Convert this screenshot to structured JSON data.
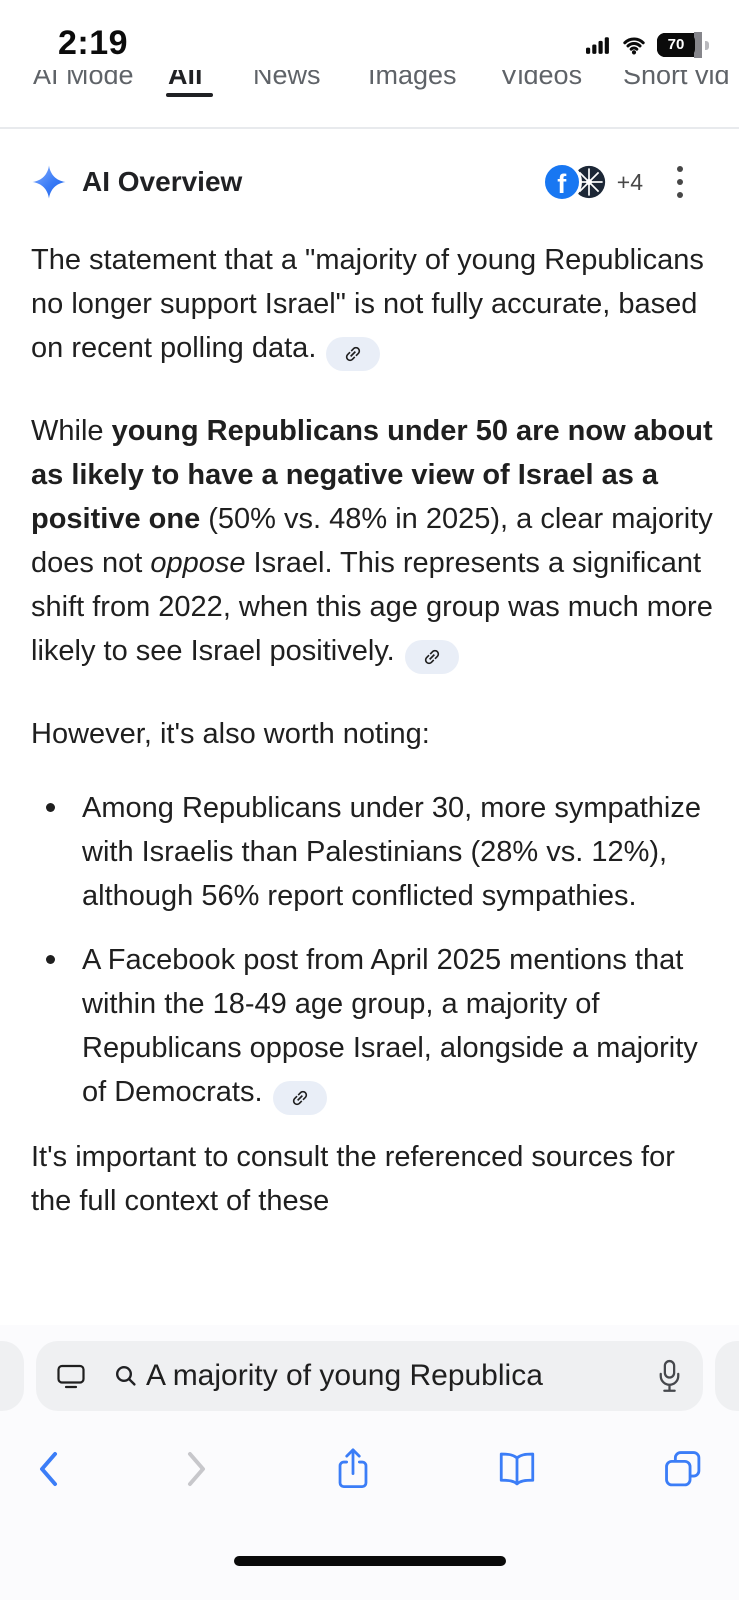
{
  "status_bar": {
    "time": "2:19",
    "battery_percent": "70"
  },
  "search_tabs": {
    "items": [
      {
        "label": "AI Mode",
        "active": false
      },
      {
        "label": "All",
        "active": true
      },
      {
        "label": "News",
        "active": false
      },
      {
        "label": "Images",
        "active": false
      },
      {
        "label": "Videos",
        "active": false
      },
      {
        "label": "Short vid",
        "active": false
      }
    ]
  },
  "ai_overview": {
    "title": "AI Overview",
    "more_sources_count": "+4",
    "facebook_glyph": "f"
  },
  "content": {
    "paragraphs": {
      "p1": {
        "segments": [
          {
            "text": "The statement that a \"majority of young Republicans no longer support Israel\" is not fully accurate, based on recent polling data."
          }
        ],
        "chip": true
      },
      "p2": {
        "segments": [
          {
            "text": "While "
          },
          {
            "text": "young Republicans under 50 are now about as likely to have a negative view of Israel as a positive one",
            "bold": true
          },
          {
            "text": " (50% vs. 48% in 2025), a clear majority does not "
          },
          {
            "text": "oppose",
            "italic": true
          },
          {
            "text": " Israel. This represents a significant shift from 2022, when this age group was much more likely to see Israel positively."
          }
        ],
        "chip": true
      },
      "p3": {
        "segments": [
          {
            "text": "However, it's also worth noting:"
          }
        ],
        "chip": false
      },
      "closing": {
        "segments": [
          {
            "text": "It's important to consult the referenced sources for the full context of these"
          }
        ],
        "chip": false
      }
    },
    "bullets": {
      "b1": {
        "segments": [
          {
            "text": "Among Republicans under 30, more sympathize with Israelis than Palestinians (28% vs. 12%), although 56% report conflicted sympathies."
          }
        ],
        "chip": false
      },
      "b2": {
        "segments": [
          {
            "text": "A Facebook post from April 2025 mentions that within the 18-49 age group, a majority of Republicans oppose Israel, alongside a majority of Democrats."
          }
        ],
        "chip": true
      }
    }
  },
  "browser": {
    "search_query": "A majority of young Republica"
  },
  "colors": {
    "text": "#1f1f1f",
    "accent_blue": "#3b7df7",
    "facebook_blue": "#1877f2",
    "chip_bg": "#e9eef7",
    "tab_inactive": "#5f6368"
  }
}
